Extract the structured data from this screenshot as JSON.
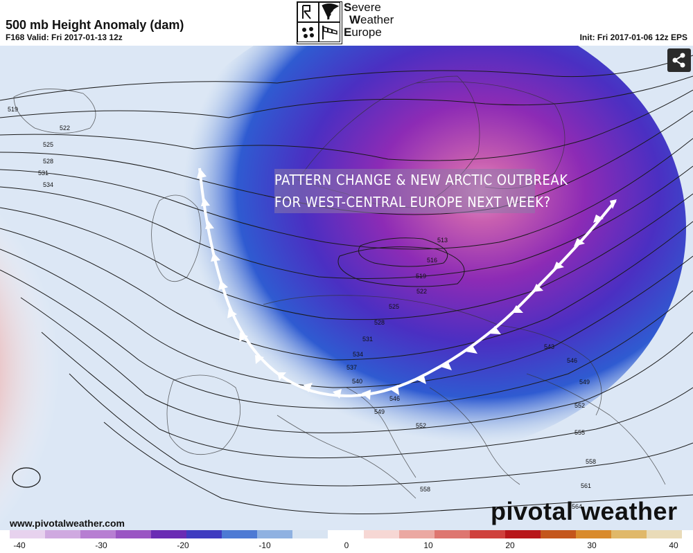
{
  "header": {
    "title": "500 mb Height Anomaly (dam)",
    "valid": "F168 Valid: Fri 2017-01-13 12z",
    "init": "Init: Fri 2017-01-06 12z EPS"
  },
  "logo": {
    "line1": "evere",
    "line1_initial": "S",
    "line2": "eather",
    "line2_initial": "W",
    "line3": "urope",
    "line3_initial": "E"
  },
  "overlay": {
    "line1": "PATTERN CHANGE & NEW ARCTIC OUTBREAK",
    "line2": "FOR WEST-CENTRAL EUROPE NEXT WEEK?"
  },
  "footer": {
    "website": "www.pivotalweather.com",
    "brand": "pivotal weather"
  },
  "contour_labels": [
    "519",
    "522",
    "525",
    "528",
    "531",
    "534",
    "513",
    "516",
    "519",
    "522",
    "525",
    "528",
    "531",
    "534",
    "537",
    "540",
    "543",
    "546",
    "549",
    "552",
    "546",
    "549",
    "552",
    "555",
    "558",
    "558",
    "561",
    "564"
  ],
  "colorbar": {
    "ticks": [
      "-40",
      "-30",
      "-20",
      "-10",
      "0",
      "10",
      "20",
      "30",
      "40"
    ],
    "colors": [
      "#e7d2ee",
      "#cfa9e0",
      "#b77ed2",
      "#9a55c3",
      "#6a2bb4",
      "#3f3bc0",
      "#4d7ad4",
      "#8fb1e1",
      "#d8e4f2",
      "#ffffff",
      "#f6d7d4",
      "#eba8a2",
      "#de7670",
      "#cf403c",
      "#b8161a",
      "#c4561c",
      "#d98a2c",
      "#e0b869",
      "#e9dbb8"
    ]
  },
  "icons": {
    "share": "share-icon",
    "logo": [
      "lightning-icon",
      "tornado-icon",
      "hail-icon",
      "windsock-icon"
    ]
  }
}
